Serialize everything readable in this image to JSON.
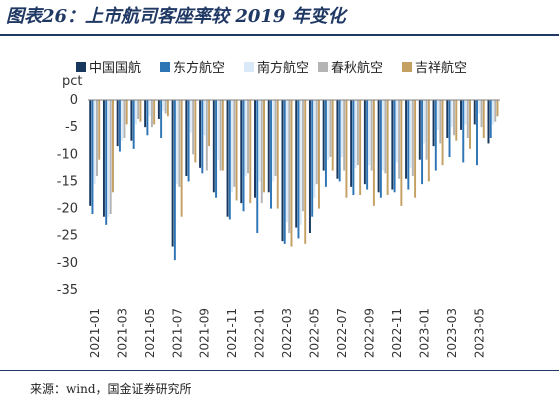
{
  "title": "图表26：上市航司客座率较 2019 年变化",
  "source": "来源：wind，国金证券研究所",
  "chart_data": {
    "type": "bar",
    "ylabel": "pct",
    "ylim": [
      -35,
      0
    ],
    "yticks": [
      0,
      -5,
      -10,
      -15,
      -20,
      -25,
      -30,
      -35
    ],
    "grid": false,
    "legend_position": "top",
    "categories": [
      "2021-01",
      "2021-02",
      "2021-03",
      "2021-04",
      "2021-05",
      "2021-06",
      "2021-07",
      "2021-08",
      "2021-09",
      "2021-10",
      "2021-11",
      "2021-12",
      "2022-01",
      "2022-02",
      "2022-03",
      "2022-04",
      "2022-05",
      "2022-06",
      "2022-07",
      "2022-08",
      "2022-09",
      "2022-10",
      "2022-11",
      "2022-12",
      "2023-01",
      "2023-02",
      "2023-03",
      "2023-04",
      "2023-05",
      "2023-06"
    ],
    "xtick_labels": [
      "2021-01",
      "2021-03",
      "2021-05",
      "2021-07",
      "2021-09",
      "2021-11",
      "2022-01",
      "2022-03",
      "2022-05",
      "2022-07",
      "2022-09",
      "2022-11",
      "2023-01",
      "2023-03",
      "2023-05"
    ],
    "series": [
      {
        "name": "中国国航",
        "color": "#17375e",
        "values": [
          -19.5,
          -21.5,
          -8.5,
          -7.5,
          -5,
          -3.5,
          -27,
          -14,
          -12.5,
          -17,
          -21.5,
          -19,
          -18,
          -17,
          -26,
          -23.5,
          -24.5,
          -13,
          -14.5,
          -16,
          -15.5,
          -17,
          -16.5,
          -14.5,
          -11,
          -8.5,
          -7,
          -5.5,
          -4.5,
          -8
        ]
      },
      {
        "name": "东方航空",
        "color": "#2e75b6",
        "values": [
          -21,
          -23,
          -9.5,
          -9,
          -6.5,
          -7,
          -29.5,
          -15,
          -13.5,
          -18,
          -22,
          -20.5,
          -24.5,
          -20,
          -26.5,
          -25.5,
          -21.5,
          -16,
          -15,
          -17.5,
          -16.5,
          -18,
          -17,
          -16.5,
          -15.5,
          -13,
          -10.5,
          -11.5,
          -12,
          -7
        ]
      },
      {
        "name": "南方航空",
        "color": "#d9e9f7",
        "values": [
          -15.5,
          -21.5,
          -7.5,
          -4.5,
          -3,
          -2,
          -15.5,
          -6,
          -6.5,
          -11,
          -17,
          -14,
          -15,
          -15,
          -22.5,
          -23,
          -18,
          -11,
          -10.5,
          -12.5,
          -12,
          -13,
          -11.5,
          -12.5,
          -8,
          -5.5,
          -5,
          -4.5,
          -2.5,
          -4.5
        ]
      },
      {
        "name": "春秋航空",
        "color": "#b4b4b4",
        "values": [
          -14,
          -21,
          -7,
          -3.5,
          -5,
          -2.5,
          -16,
          -10,
          -13,
          -13,
          -16,
          -13.5,
          -19,
          -14,
          -24.5,
          -20.5,
          -15.5,
          -10.5,
          -13,
          -12,
          -13,
          -13.5,
          -14.5,
          -14,
          -11,
          -8,
          -6.5,
          -7,
          -5,
          -4
        ]
      },
      {
        "name": "吉祥航空",
        "color": "#c5a063",
        "values": [
          -11,
          -17,
          -4.5,
          -4,
          -4.5,
          -3,
          -21.5,
          -11.5,
          -8.5,
          -13,
          -18.5,
          -19,
          -17,
          -20,
          -27,
          -26.5,
          -20,
          -13,
          -18,
          -17.5,
          -19.5,
          -17.5,
          -19.5,
          -18,
          -15,
          -12,
          -7.5,
          -9,
          -7,
          -3
        ]
      }
    ]
  }
}
